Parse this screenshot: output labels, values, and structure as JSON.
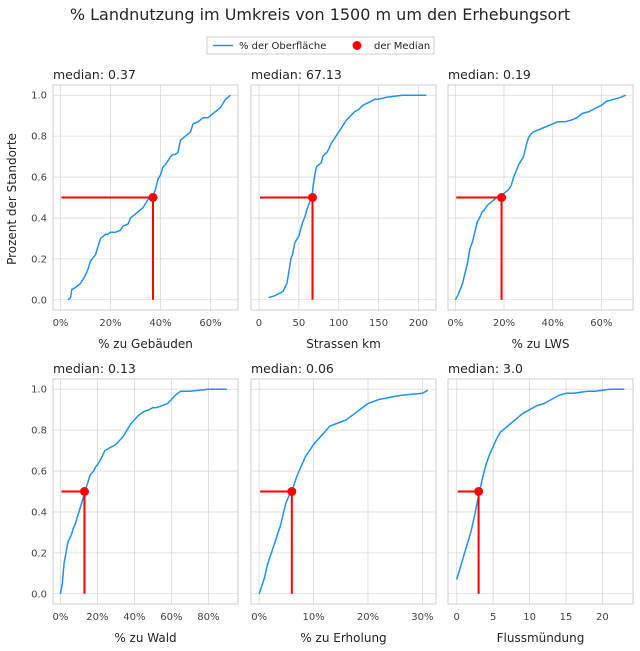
{
  "figure": {
    "title": "% Landnutzung im Umkreis von 1500 m um den Erhebungsort",
    "ylabel": "Prozent der Standorte",
    "legend": [
      "% der Oberfläche",
      "der Median"
    ]
  },
  "colors": {
    "line": "#1e90ff",
    "median": "#ff0000",
    "grid": "#d9d9d9",
    "axis": "#cccccc"
  },
  "chart_data": [
    {
      "type": "line",
      "title": "median: 0.37",
      "xlabel": "% zu Gebäuden",
      "xlim": [
        -0.03,
        0.71
      ],
      "ylim": [
        -0.05,
        1.05
      ],
      "xticks": [
        0,
        0.2,
        0.4,
        0.6
      ],
      "xticklabels": [
        "0%",
        "20%",
        "40%",
        "60%"
      ],
      "median": {
        "x": 0.37,
        "y": 0.5
      },
      "series": [
        {
          "x": [
            0.03,
            0.04,
            0.045,
            0.06,
            0.07,
            0.08,
            0.09,
            0.1,
            0.11,
            0.12,
            0.14,
            0.15,
            0.16,
            0.17,
            0.18,
            0.19,
            0.2,
            0.22,
            0.24,
            0.25,
            0.27,
            0.28,
            0.29,
            0.3,
            0.31,
            0.32,
            0.33,
            0.34,
            0.35,
            0.36,
            0.37,
            0.38,
            0.39,
            0.4,
            0.41,
            0.42,
            0.44,
            0.45,
            0.46,
            0.47,
            0.48,
            0.49,
            0.5,
            0.52,
            0.53,
            0.55,
            0.56,
            0.57,
            0.59,
            0.6,
            0.62,
            0.64,
            0.65,
            0.66,
            0.67,
            0.68
          ],
          "y": [
            0.0,
            0.01,
            0.05,
            0.06,
            0.07,
            0.08,
            0.1,
            0.12,
            0.15,
            0.19,
            0.22,
            0.26,
            0.3,
            0.31,
            0.32,
            0.32,
            0.33,
            0.33,
            0.34,
            0.36,
            0.37,
            0.4,
            0.41,
            0.42,
            0.43,
            0.44,
            0.45,
            0.47,
            0.49,
            0.5,
            0.51,
            0.54,
            0.59,
            0.61,
            0.65,
            0.66,
            0.7,
            0.71,
            0.71,
            0.72,
            0.78,
            0.79,
            0.8,
            0.82,
            0.86,
            0.87,
            0.88,
            0.89,
            0.89,
            0.9,
            0.92,
            0.94,
            0.96,
            0.98,
            0.99,
            1.0
          ]
        }
      ]
    },
    {
      "type": "line",
      "title": "median: 67.13",
      "xlabel": "Strassen km",
      "xlim": [
        -10,
        222
      ],
      "ylim": [
        -0.05,
        1.05
      ],
      "xticks": [
        0,
        50,
        100,
        150,
        200
      ],
      "xticklabels": [
        "0",
        "50",
        "100",
        "150",
        "200"
      ],
      "median": {
        "x": 67.13,
        "y": 0.5
      },
      "series": [
        {
          "x": [
            12,
            20,
            25,
            30,
            35,
            38,
            40,
            42,
            45,
            48,
            50,
            52,
            55,
            58,
            60,
            62,
            64,
            66,
            67,
            68,
            70,
            72,
            75,
            78,
            80,
            82,
            85,
            88,
            90,
            95,
            100,
            105,
            110,
            115,
            120,
            125,
            130,
            135,
            140,
            145,
            150,
            160,
            170,
            180,
            190,
            200,
            210
          ],
          "y": [
            0.01,
            0.02,
            0.03,
            0.04,
            0.08,
            0.15,
            0.2,
            0.22,
            0.28,
            0.3,
            0.31,
            0.34,
            0.38,
            0.41,
            0.44,
            0.46,
            0.48,
            0.5,
            0.52,
            0.56,
            0.61,
            0.65,
            0.66,
            0.67,
            0.7,
            0.71,
            0.72,
            0.74,
            0.76,
            0.79,
            0.82,
            0.85,
            0.88,
            0.9,
            0.92,
            0.93,
            0.95,
            0.96,
            0.97,
            0.98,
            0.98,
            0.99,
            0.995,
            1.0,
            1.0,
            1.0,
            1.0
          ]
        }
      ]
    },
    {
      "type": "line",
      "title": "median: 0.19",
      "xlabel": "% zu LWS",
      "xlim": [
        -0.03,
        0.73
      ],
      "ylim": [
        -0.05,
        1.05
      ],
      "xticks": [
        0,
        0.2,
        0.4,
        0.6
      ],
      "xticklabels": [
        "0%",
        "20%",
        "40%",
        "60%"
      ],
      "median": {
        "x": 0.19,
        "y": 0.5
      },
      "series": [
        {
          "x": [
            0.0,
            0.01,
            0.02,
            0.03,
            0.04,
            0.05,
            0.06,
            0.07,
            0.08,
            0.09,
            0.1,
            0.11,
            0.12,
            0.13,
            0.14,
            0.15,
            0.16,
            0.17,
            0.18,
            0.19,
            0.2,
            0.22,
            0.23,
            0.24,
            0.25,
            0.26,
            0.27,
            0.28,
            0.29,
            0.3,
            0.31,
            0.32,
            0.34,
            0.36,
            0.38,
            0.4,
            0.42,
            0.45,
            0.48,
            0.5,
            0.52,
            0.55,
            0.58,
            0.6,
            0.62,
            0.65,
            0.68,
            0.7
          ],
          "y": [
            0.0,
            0.02,
            0.05,
            0.08,
            0.13,
            0.18,
            0.25,
            0.28,
            0.33,
            0.38,
            0.4,
            0.43,
            0.44,
            0.46,
            0.47,
            0.48,
            0.49,
            0.5,
            0.5,
            0.51,
            0.52,
            0.54,
            0.56,
            0.6,
            0.63,
            0.66,
            0.68,
            0.7,
            0.75,
            0.79,
            0.81,
            0.82,
            0.83,
            0.84,
            0.85,
            0.86,
            0.87,
            0.87,
            0.88,
            0.89,
            0.91,
            0.92,
            0.94,
            0.95,
            0.97,
            0.98,
            0.99,
            1.0
          ]
        }
      ]
    },
    {
      "type": "line",
      "title": "median: 0.13",
      "xlabel": "% zu Wald",
      "xlim": [
        -0.04,
        0.96
      ],
      "ylim": [
        -0.05,
        1.05
      ],
      "xticks": [
        0,
        0.2,
        0.4,
        0.6,
        0.8
      ],
      "xticklabels": [
        "0%",
        "20%",
        "40%",
        "60%",
        "80%"
      ],
      "median": {
        "x": 0.13,
        "y": 0.5
      },
      "series": [
        {
          "x": [
            0.0,
            0.01,
            0.02,
            0.03,
            0.04,
            0.05,
            0.06,
            0.07,
            0.08,
            0.09,
            0.1,
            0.11,
            0.12,
            0.13,
            0.14,
            0.15,
            0.16,
            0.17,
            0.18,
            0.19,
            0.2,
            0.22,
            0.24,
            0.26,
            0.28,
            0.3,
            0.32,
            0.34,
            0.36,
            0.38,
            0.4,
            0.42,
            0.45,
            0.48,
            0.5,
            0.52,
            0.55,
            0.58,
            0.6,
            0.62,
            0.65,
            0.7,
            0.75,
            0.8,
            0.85,
            0.9
          ],
          "y": [
            0.0,
            0.05,
            0.15,
            0.2,
            0.25,
            0.27,
            0.29,
            0.32,
            0.34,
            0.37,
            0.4,
            0.43,
            0.46,
            0.49,
            0.52,
            0.55,
            0.58,
            0.59,
            0.6,
            0.62,
            0.63,
            0.66,
            0.7,
            0.71,
            0.72,
            0.73,
            0.75,
            0.77,
            0.8,
            0.83,
            0.85,
            0.87,
            0.89,
            0.9,
            0.91,
            0.91,
            0.92,
            0.93,
            0.95,
            0.97,
            0.99,
            0.99,
            0.995,
            1.0,
            1.0,
            1.0
          ]
        }
      ]
    },
    {
      "type": "line",
      "title": "median: 0.06",
      "xlabel": "% zu Erholung",
      "xlim": [
        -0.015,
        0.325
      ],
      "ylim": [
        -0.05,
        1.05
      ],
      "xticks": [
        0,
        0.1,
        0.2,
        0.3
      ],
      "xticklabels": [
        "0%",
        "10%",
        "20%",
        "30%"
      ],
      "median": {
        "x": 0.06,
        "y": 0.5
      },
      "series": [
        {
          "x": [
            0.0,
            0.005,
            0.01,
            0.015,
            0.02,
            0.025,
            0.03,
            0.035,
            0.04,
            0.045,
            0.05,
            0.055,
            0.06,
            0.065,
            0.07,
            0.075,
            0.08,
            0.085,
            0.09,
            0.095,
            0.1,
            0.11,
            0.12,
            0.13,
            0.14,
            0.15,
            0.16,
            0.17,
            0.18,
            0.19,
            0.2,
            0.22,
            0.24,
            0.26,
            0.28,
            0.3,
            0.31
          ],
          "y": [
            0.0,
            0.04,
            0.08,
            0.14,
            0.18,
            0.22,
            0.26,
            0.3,
            0.34,
            0.4,
            0.45,
            0.48,
            0.5,
            0.54,
            0.58,
            0.61,
            0.64,
            0.67,
            0.69,
            0.71,
            0.73,
            0.76,
            0.79,
            0.82,
            0.83,
            0.84,
            0.85,
            0.87,
            0.89,
            0.91,
            0.93,
            0.95,
            0.96,
            0.97,
            0.975,
            0.98,
            0.995
          ]
        }
      ]
    },
    {
      "type": "line",
      "title": "median: 3.0",
      "xlabel": "Flussmündung",
      "xlim": [
        -1.2,
        24.2
      ],
      "ylim": [
        -0.05,
        1.05
      ],
      "xticks": [
        0,
        5,
        10,
        15,
        20
      ],
      "xticklabels": [
        "0",
        "5",
        "10",
        "15",
        "20"
      ],
      "median": {
        "x": 3.0,
        "y": 0.5
      },
      "series": [
        {
          "x": [
            0,
            0.5,
            1,
            1.5,
            2,
            2.5,
            3,
            3.5,
            4,
            4.5,
            5,
            5.5,
            6,
            7,
            8,
            9,
            10,
            11,
            12,
            13,
            14,
            15,
            16,
            17,
            18,
            19,
            20,
            21,
            22,
            23
          ],
          "y": [
            0.07,
            0.13,
            0.19,
            0.25,
            0.31,
            0.39,
            0.48,
            0.56,
            0.63,
            0.68,
            0.72,
            0.76,
            0.79,
            0.82,
            0.85,
            0.88,
            0.9,
            0.92,
            0.93,
            0.95,
            0.97,
            0.98,
            0.98,
            0.985,
            0.99,
            0.99,
            0.995,
            1.0,
            1.0,
            1.0
          ]
        }
      ]
    }
  ]
}
